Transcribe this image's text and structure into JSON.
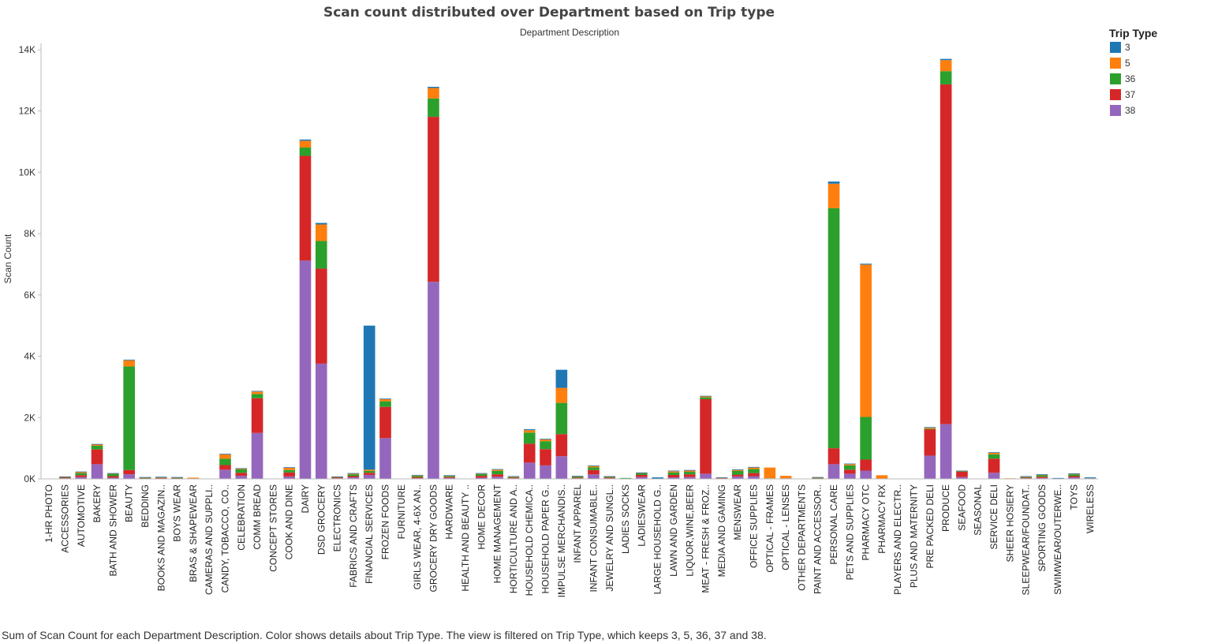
{
  "chart_data": {
    "type": "bar",
    "stacked": true,
    "title": "Scan count distributed over Department based on Trip type",
    "top_axis_label": "Department Description",
    "ylabel": "Scan Count",
    "ylim": [
      0,
      14000
    ],
    "yticks": [
      {
        "value": 0,
        "label": "0K"
      },
      {
        "value": 2000,
        "label": "2K"
      },
      {
        "value": 4000,
        "label": "4K"
      },
      {
        "value": 6000,
        "label": "6K"
      },
      {
        "value": 8000,
        "label": "8K"
      },
      {
        "value": 10000,
        "label": "10K"
      },
      {
        "value": 12000,
        "label": "12K"
      },
      {
        "value": 14000,
        "label": "14K"
      }
    ],
    "legend": {
      "title": "Trip Type",
      "placement": "top-right",
      "items": [
        {
          "label": "3",
          "color": "#1f77b4"
        },
        {
          "label": "5",
          "color": "#ff7f0e"
        },
        {
          "label": "36",
          "color": "#2ca02c"
        },
        {
          "label": "37",
          "color": "#d62728"
        },
        {
          "label": "38",
          "color": "#9467bd"
        }
      ]
    },
    "categories": [
      "1-HR PHOTO",
      "ACCESSORIES",
      "AUTOMOTIVE",
      "BAKERY",
      "BATH AND SHOWER",
      "BEAUTY",
      "BEDDING",
      "BOOKS AND MAGAZIN..",
      "BOYS WEAR",
      "BRAS & SHAPEWEAR",
      "CAMERAS AND SUPPLI..",
      "CANDY, TOBACCO, CO..",
      "CELEBRATION",
      "COMM BREAD",
      "CONCEPT STORES",
      "COOK AND DINE",
      "DAIRY",
      "DSD GROCERY",
      "ELECTRONICS",
      "FABRICS AND CRAFTS",
      "FINANCIAL SERVICES",
      "FROZEN FOODS",
      "FURNITURE",
      "GIRLS WEAR, 4-6X  AN..",
      "GROCERY DRY GOODS",
      "HARDWARE",
      "HEALTH AND BEAUTY ..",
      "HOME DECOR",
      "HOME MANAGEMENT",
      "HORTICULTURE AND A..",
      "HOUSEHOLD CHEMICA..",
      "HOUSEHOLD PAPER G..",
      "IMPULSE MERCHANDIS..",
      "INFANT APPAREL",
      "INFANT CONSUMABLE..",
      "JEWELRY AND SUNGL..",
      "LADIES SOCKS",
      "LADIESWEAR",
      "LARGE HOUSEHOLD G..",
      "LAWN AND GARDEN",
      "LIQUOR,WINE,BEER",
      "MEAT - FRESH & FROZ..",
      "MEDIA AND GAMING",
      "MENSWEAR",
      "OFFICE SUPPLIES",
      "OPTICAL - FRAMES",
      "OPTICAL - LENSES",
      "OTHER DEPARTMENTS",
      "PAINT AND ACCESSOR..",
      "PERSONAL CARE",
      "PETS AND SUPPLIES",
      "PHARMACY OTC",
      "PHARMACY RX",
      "PLAYERS AND ELECTR..",
      "PLUS AND MATERNITY",
      "PRE PACKED DELI",
      "PRODUCE",
      "SEAFOOD",
      "SEASONAL",
      "SERVICE DELI",
      "SHEER HOSIERY",
      "SLEEPWEAR/FOUNDAT..",
      "SPORTING GOODS",
      "SWIMWEAR/OUTERWE..",
      "TOYS",
      "WIRELESS"
    ],
    "series": [
      {
        "name": "38",
        "color": "#9467bd",
        "values": [
          0,
          20,
          60,
          480,
          40,
          150,
          10,
          10,
          10,
          0,
          0,
          300,
          100,
          1500,
          0,
          80,
          7120,
          3760,
          20,
          50,
          130,
          1330,
          0,
          20,
          6430,
          30,
          0,
          40,
          70,
          20,
          530,
          440,
          740,
          20,
          150,
          20,
          10,
          60,
          10,
          50,
          60,
          170,
          10,
          80,
          90,
          10,
          20,
          0,
          10,
          480,
          170,
          270,
          10,
          0,
          0,
          760,
          1790,
          60,
          0,
          200,
          10,
          20,
          30,
          10,
          50,
          10
        ]
      },
      {
        "name": "37",
        "color": "#d62728",
        "values": [
          0,
          30,
          60,
          480,
          50,
          140,
          20,
          20,
          20,
          10,
          0,
          150,
          100,
          1130,
          0,
          130,
          3420,
          3100,
          20,
          40,
          70,
          1020,
          0,
          30,
          5380,
          30,
          0,
          60,
          80,
          20,
          620,
          530,
          720,
          20,
          140,
          20,
          0,
          70,
          0,
          80,
          90,
          2430,
          20,
          60,
          100,
          0,
          0,
          0,
          20,
          520,
          130,
          360,
          0,
          0,
          0,
          860,
          11080,
          180,
          0,
          460,
          0,
          20,
          40,
          0,
          40,
          0
        ]
      },
      {
        "name": "36",
        "color": "#2ca02c",
        "values": [
          0,
          10,
          70,
          120,
          80,
          3380,
          10,
          20,
          10,
          0,
          0,
          210,
          110,
          140,
          0,
          80,
          270,
          900,
          20,
          60,
          60,
          180,
          0,
          50,
          600,
          40,
          0,
          60,
          110,
          20,
          360,
          260,
          1020,
          40,
          90,
          30,
          20,
          60,
          0,
          80,
          80,
          60,
          0,
          120,
          130,
          10,
          0,
          0,
          10,
          7830,
          140,
          1390,
          0,
          0,
          0,
          20,
          430,
          10,
          0,
          140,
          0,
          20,
          60,
          0,
          60,
          0
        ]
      },
      {
        "name": "5",
        "color": "#ff7f0e",
        "values": [
          0,
          10,
          30,
          40,
          10,
          200,
          10,
          10,
          10,
          30,
          0,
          140,
          30,
          80,
          0,
          70,
          220,
          540,
          10,
          30,
          40,
          70,
          0,
          10,
          340,
          10,
          0,
          20,
          40,
          20,
          80,
          60,
          490,
          10,
          40,
          10,
          0,
          10,
          0,
          40,
          40,
          30,
          10,
          40,
          50,
          350,
          80,
          0,
          10,
          800,
          40,
          4970,
          110,
          0,
          0,
          30,
          360,
          10,
          0,
          50,
          10,
          20,
          10,
          10,
          20,
          10
        ]
      },
      {
        "name": "3",
        "color": "#1f77b4",
        "values": [
          10,
          10,
          20,
          20,
          10,
          20,
          10,
          10,
          10,
          0,
          0,
          20,
          10,
          20,
          0,
          20,
          40,
          50,
          10,
          10,
          4700,
          20,
          0,
          20,
          40,
          10,
          0,
          10,
          20,
          10,
          30,
          20,
          590,
          10,
          20,
          10,
          0,
          10,
          40,
          20,
          20,
          20,
          10,
          10,
          20,
          0,
          0,
          0,
          10,
          70,
          20,
          30,
          0,
          0,
          0,
          20,
          40,
          10,
          0,
          20,
          0,
          10,
          10,
          10,
          10,
          30
        ]
      }
    ],
    "grid": false
  },
  "caption": "Sum of Scan Count for each Department Description.  Color shows details about Trip Type. The view is filtered on Trip Type, which keeps 3, 5, 36, 37 and 38."
}
